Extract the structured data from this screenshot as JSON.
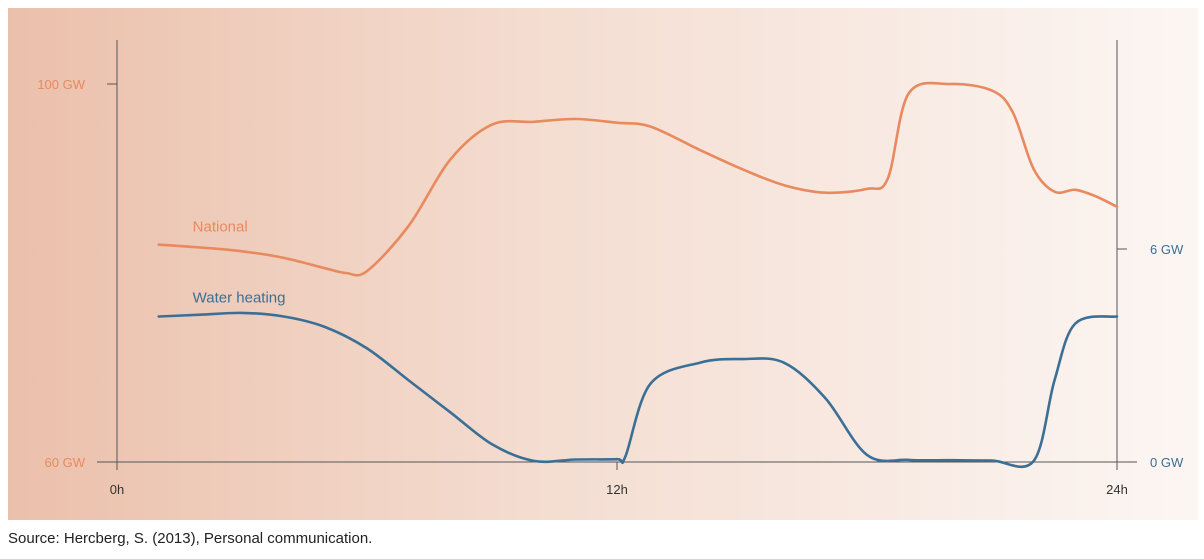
{
  "chart_data": {
    "type": "line",
    "x_unit": "hour",
    "xlim": [
      0,
      24
    ],
    "x_ticks": [
      {
        "value": 0,
        "label": "0h"
      },
      {
        "value": 12,
        "label": "12h"
      },
      {
        "value": 24,
        "label": "24h"
      }
    ],
    "left_axis": {
      "ylim": [
        60,
        100
      ],
      "ticks": [
        {
          "value": 100,
          "label": "100 GW"
        },
        {
          "value": 60,
          "label": "60 GW"
        }
      ],
      "color": "#E88A5E"
    },
    "right_axis": {
      "ylim": [
        0,
        6
      ],
      "ticks": [
        {
          "value": 6,
          "label": "6 GW"
        },
        {
          "value": 0,
          "label": "0 GW"
        }
      ],
      "color": "#3B6F95"
    },
    "grid": false,
    "series": [
      {
        "name": "National",
        "axis": "left",
        "color": "#E88A5E",
        "x": [
          1,
          2,
          3,
          4,
          5,
          5.5,
          6,
          7,
          8,
          9,
          10,
          11,
          12,
          12.8,
          14,
          15,
          16,
          17,
          18,
          18.5,
          19,
          20,
          21,
          21.5,
          22,
          22.5,
          23,
          23.5,
          24
        ],
        "y": [
          83.0,
          82.7,
          82.3,
          81.6,
          80.5,
          80.0,
          80.2,
          85.0,
          92.0,
          95.7,
          96.0,
          96.3,
          95.9,
          95.5,
          93.0,
          91.0,
          89.3,
          88.5,
          88.9,
          90.0,
          99.0,
          100.0,
          99.3,
          97.0,
          91.0,
          88.6,
          88.8,
          88.1,
          87.0
        ]
      },
      {
        "name": "Water heating",
        "axis": "right",
        "color": "#3B6F95",
        "x": [
          1,
          2,
          3,
          4,
          5,
          6,
          7,
          8,
          9,
          10,
          11,
          12,
          12.2,
          12.8,
          14,
          15,
          16,
          17,
          18,
          19,
          20,
          21,
          22,
          22.5,
          23,
          24
        ],
        "y": [
          4.1,
          4.15,
          4.2,
          4.1,
          3.8,
          3.2,
          2.3,
          1.4,
          0.5,
          0.03,
          0.07,
          0.08,
          0.15,
          2.2,
          2.8,
          2.9,
          2.8,
          1.8,
          0.2,
          0.06,
          0.05,
          0.04,
          0.03,
          2.3,
          3.9,
          4.1
        ]
      }
    ],
    "series_label_positions": {
      "National": {
        "x": 1,
        "y": 84.4
      },
      "Water heating": {
        "x": 1,
        "y": 4.5
      }
    },
    "source_note": "Source: Hercberg, S. (2013), Personal communication."
  }
}
